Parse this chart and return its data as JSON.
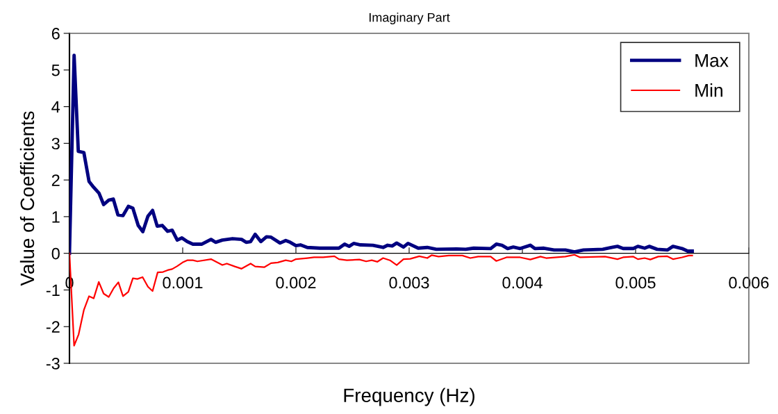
{
  "chart_data": {
    "type": "line",
    "title": "Imaginary Part",
    "xlabel": "Frequency (Hz)",
    "ylabel": "Value of Coefficients",
    "xlim": [
      0,
      0.006
    ],
    "xticks": [
      0,
      0.001,
      0.002,
      0.003,
      0.004,
      0.005,
      0.006
    ],
    "ylim": [
      -3,
      6
    ],
    "yticks": [
      -3,
      -2,
      -1,
      0,
      1,
      2,
      3,
      4,
      5,
      6
    ],
    "grid": false,
    "legend": "top right",
    "marker": "none",
    "line_style": "solid",
    "series": [
      {
        "name": "Max",
        "color": "#000080",
        "x": [
          0,
          4.1e-05,
          7.8e-05,
          0.000127,
          0.000173,
          0.000214,
          0.000261,
          0.000302,
          0.000347,
          0.000387,
          0.000428,
          0.000473,
          0.00052,
          0.00056,
          0.000607,
          0.000648,
          0.000693,
          0.000734,
          0.000775,
          0.00082,
          0.000867,
          0.000907,
          0.000952,
          0.000993,
          0.00104,
          0.00109,
          0.00117,
          0.00125,
          0.00129,
          0.00135,
          0.00144,
          0.00152,
          0.00156,
          0.0016,
          0.00164,
          0.00169,
          0.00174,
          0.00178,
          0.00186,
          0.00191,
          0.00195,
          0.002,
          0.00204,
          0.0021,
          0.00221,
          0.00238,
          0.00243,
          0.00247,
          0.00251,
          0.00257,
          0.00268,
          0.00277,
          0.00281,
          0.00285,
          0.00289,
          0.00295,
          0.00299,
          0.00308,
          0.00316,
          0.00324,
          0.00342,
          0.0035,
          0.00357,
          0.00372,
          0.00377,
          0.00382,
          0.00387,
          0.00392,
          0.00398,
          0.00407,
          0.00411,
          0.00419,
          0.00428,
          0.00438,
          0.00446,
          0.00454,
          0.00471,
          0.00479,
          0.00484,
          0.00489,
          0.00498,
          0.00502,
          0.00508,
          0.00512,
          0.00519,
          0.00528,
          0.00533,
          0.00541,
          0.00546,
          0.0055
        ],
        "values": [
          0,
          5.4,
          2.78,
          2.75,
          1.96,
          1.8,
          1.64,
          1.33,
          1.45,
          1.48,
          1.05,
          1.03,
          1.28,
          1.23,
          0.76,
          0.59,
          1.01,
          1.17,
          0.74,
          0.76,
          0.6,
          0.63,
          0.36,
          0.42,
          0.32,
          0.25,
          0.25,
          0.38,
          0.3,
          0.36,
          0.4,
          0.38,
          0.3,
          0.32,
          0.52,
          0.32,
          0.45,
          0.44,
          0.28,
          0.35,
          0.3,
          0.21,
          0.23,
          0.16,
          0.14,
          0.14,
          0.25,
          0.19,
          0.27,
          0.23,
          0.22,
          0.16,
          0.22,
          0.2,
          0.28,
          0.17,
          0.27,
          0.14,
          0.16,
          0.11,
          0.12,
          0.11,
          0.14,
          0.13,
          0.25,
          0.22,
          0.13,
          0.17,
          0.13,
          0.22,
          0.13,
          0.14,
          0.09,
          0.09,
          0.04,
          0.09,
          0.11,
          0.16,
          0.19,
          0.13,
          0.13,
          0.19,
          0.14,
          0.19,
          0.11,
          0.09,
          0.19,
          0.13,
          0.06,
          0.06
        ]
      },
      {
        "name": "Min",
        "color": "#ff0000",
        "x": [
          0,
          4.1e-05,
          8.1e-05,
          0.000127,
          0.000173,
          0.000214,
          0.000259,
          0.000302,
          0.000347,
          0.000391,
          0.000432,
          0.000473,
          0.00052,
          0.00056,
          0.0006,
          0.000646,
          0.000693,
          0.000734,
          0.000779,
          0.000826,
          0.000867,
          0.000907,
          0.000952,
          0.000999,
          0.00104,
          0.00109,
          0.00113,
          0.00125,
          0.00135,
          0.00139,
          0.00146,
          0.00152,
          0.0016,
          0.00164,
          0.00172,
          0.00178,
          0.00184,
          0.00191,
          0.00196,
          0.002,
          0.0021,
          0.00216,
          0.00224,
          0.00234,
          0.00238,
          0.00245,
          0.00256,
          0.00262,
          0.00267,
          0.00272,
          0.00277,
          0.00283,
          0.00289,
          0.00295,
          0.00301,
          0.00309,
          0.00316,
          0.0032,
          0.00326,
          0.00335,
          0.00347,
          0.00354,
          0.00361,
          0.00372,
          0.00377,
          0.00386,
          0.00398,
          0.00407,
          0.00416,
          0.00421,
          0.00438,
          0.00446,
          0.00451,
          0.00473,
          0.00484,
          0.00489,
          0.00498,
          0.00502,
          0.00508,
          0.00513,
          0.0052,
          0.00528,
          0.00533,
          0.00541,
          0.00547,
          0.0055
        ],
        "values": [
          0,
          -2.52,
          -2.21,
          -1.55,
          -1.17,
          -1.23,
          -0.78,
          -1.1,
          -1.19,
          -0.95,
          -0.79,
          -1.17,
          -1.05,
          -0.68,
          -0.7,
          -0.65,
          -0.91,
          -1.03,
          -0.52,
          -0.51,
          -0.46,
          -0.43,
          -0.35,
          -0.25,
          -0.19,
          -0.19,
          -0.22,
          -0.16,
          -0.32,
          -0.28,
          -0.36,
          -0.42,
          -0.28,
          -0.36,
          -0.38,
          -0.27,
          -0.25,
          -0.19,
          -0.22,
          -0.16,
          -0.13,
          -0.11,
          -0.11,
          -0.08,
          -0.16,
          -0.19,
          -0.17,
          -0.22,
          -0.19,
          -0.23,
          -0.13,
          -0.19,
          -0.32,
          -0.16,
          -0.15,
          -0.08,
          -0.13,
          -0.05,
          -0.09,
          -0.06,
          -0.06,
          -0.13,
          -0.09,
          -0.09,
          -0.21,
          -0.11,
          -0.11,
          -0.17,
          -0.09,
          -0.13,
          -0.09,
          -0.04,
          -0.11,
          -0.09,
          -0.16,
          -0.11,
          -0.09,
          -0.16,
          -0.13,
          -0.17,
          -0.09,
          -0.08,
          -0.16,
          -0.11,
          -0.06,
          -0.06
        ]
      }
    ]
  }
}
